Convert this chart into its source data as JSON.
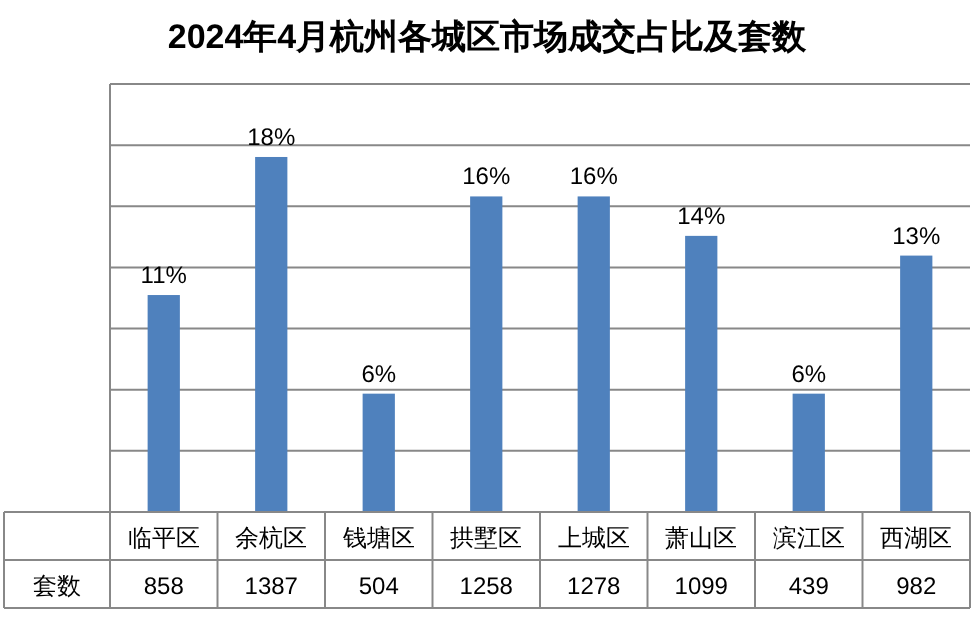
{
  "chart_data": {
    "type": "bar",
    "title": "2024年4月杭州各城区市场成交占比及套数",
    "categories": [
      "临平区",
      "余杭区",
      "钱塘区",
      "拱墅区",
      "上城区",
      "萧山区",
      "滨江区",
      "西湖区"
    ],
    "series": [
      {
        "color": "#4f81bd",
        "values": [
          11,
          18,
          6,
          16,
          16,
          14,
          6,
          13
        ],
        "value_labels": [
          "11%",
          "18%",
          "6%",
          "16%",
          "16%",
          "14%",
          "6%",
          "13%"
        ]
      }
    ],
    "ylim": [
      0,
      21.7
    ],
    "yticks": [
      {
        "value": 0,
        "label": null
      },
      {
        "value": 3.1,
        "label": null
      },
      {
        "value": 6.2,
        "label": null
      },
      {
        "value": 9.3,
        "label": null
      },
      {
        "value": 12.4,
        "label": null
      },
      {
        "value": 15.5,
        "label": null
      },
      {
        "value": 18.6,
        "label": null
      },
      {
        "value": 21.7,
        "label": null
      }
    ],
    "grid": "y",
    "annotations": [
      "套数",
      "858",
      "1387",
      "504",
      "1258",
      "1278",
      "1099",
      "439",
      "982"
    ]
  }
}
